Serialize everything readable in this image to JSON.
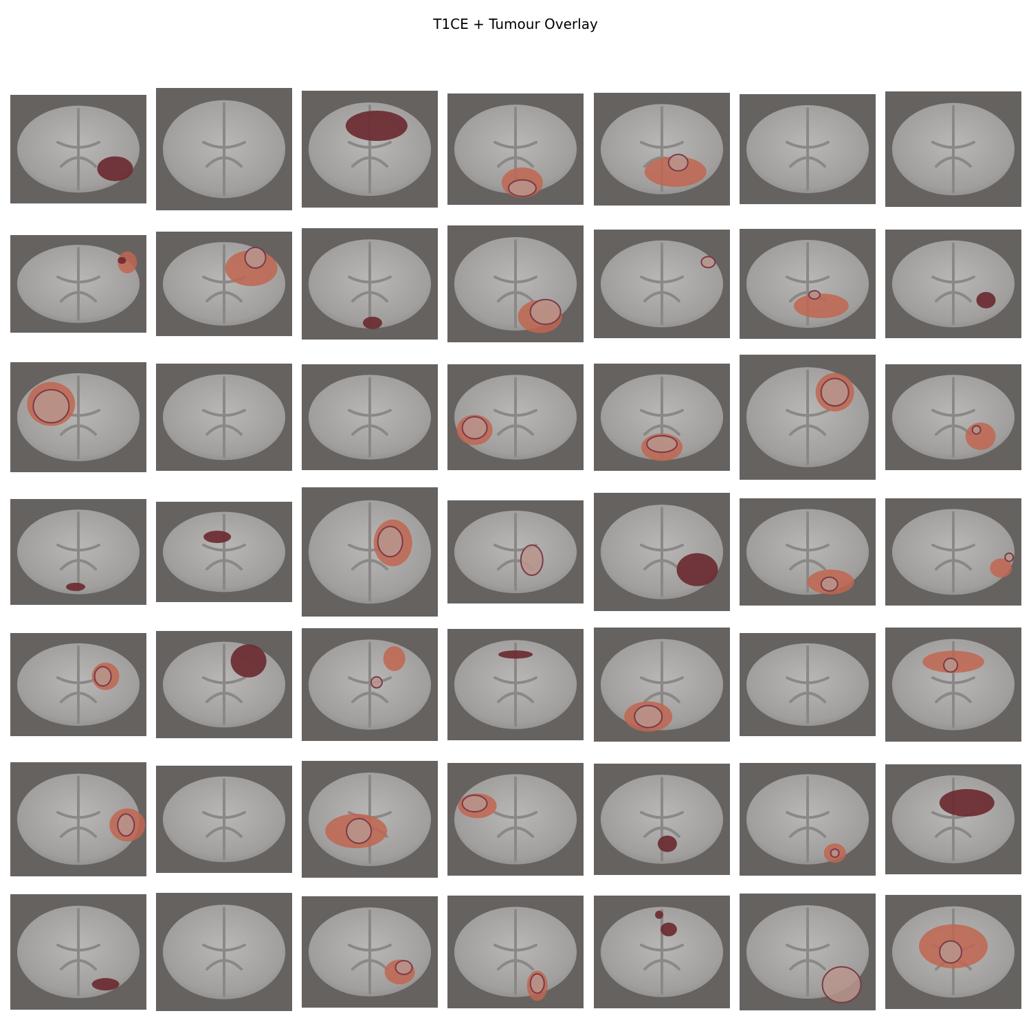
{
  "title": "T1CE + Tumour Overlay"
}
